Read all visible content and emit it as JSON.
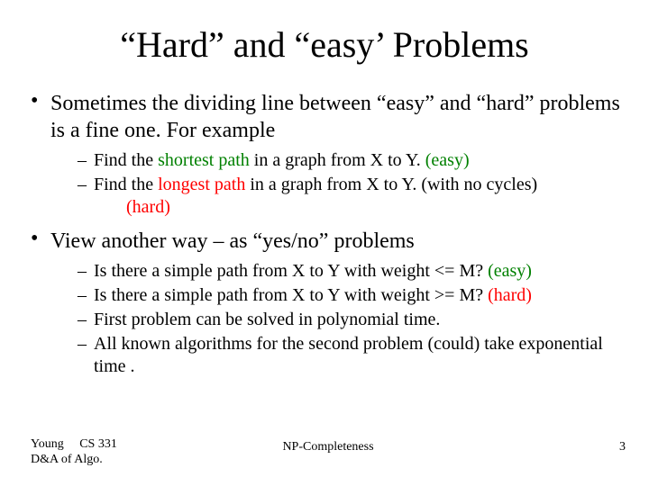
{
  "title": "“Hard” and “easy’ Problems",
  "bullets": {
    "b1": "Sometimes the dividing line between “easy” and “hard” problems is a fine one. For example",
    "b1a_pre": "Find the ",
    "b1a_key": "shortest path",
    "b1a_post": " in a graph from X to Y. ",
    "b1a_tag": "(easy)",
    "b1b_pre": "Find the ",
    "b1b_key": "longest path",
    "b1b_post": " in a graph from X to Y.  (with no cycles)",
    "b1b_tag": "(hard)",
    "b2": "View another way – as “yes/no” problems",
    "b2a_text": "Is there a simple path from X to Y with weight <= M? ",
    "b2a_tag": "(easy)",
    "b2b_text": "Is there a simple path from X to Y with weight >= M? ",
    "b2b_tag": "(hard)",
    "b2c": "First problem can be solved in polynomial time.",
    "b2d": "All known algorithms for the second problem (could) take exponential time ."
  },
  "footer": {
    "left_line1": "Young     CS 331",
    "left_line2": "D&A of Algo.",
    "center": "NP-Completeness",
    "page": "3"
  },
  "colors": {
    "text": "#000000",
    "easy": "#008000",
    "hard": "#ff0000",
    "background": "#ffffff"
  },
  "fonts": {
    "family": "Times New Roman",
    "title_size": 40,
    "lvl1_size": 24,
    "lvl2_size": 20,
    "footer_size": 14
  }
}
